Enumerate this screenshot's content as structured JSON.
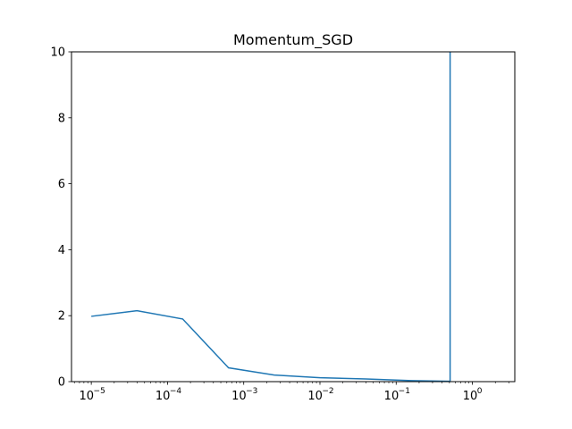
{
  "chart_data": {
    "type": "line",
    "title": "Momentum_SGD",
    "xlabel": "",
    "ylabel": "",
    "xscale": "log",
    "xlim": [
      5.5e-06,
      3.6
    ],
    "ylim": [
      0,
      10
    ],
    "grid": false,
    "x_ticks": [
      {
        "base": "10",
        "exp": "−5",
        "value": 1e-05
      },
      {
        "base": "10",
        "exp": "−4",
        "value": 0.0001
      },
      {
        "base": "10",
        "exp": "−3",
        "value": 0.001
      },
      {
        "base": "10",
        "exp": "−2",
        "value": 0.01
      },
      {
        "base": "10",
        "exp": "−1",
        "value": 0.1
      },
      {
        "base": "10",
        "exp": "0",
        "value": 1
      }
    ],
    "y_ticks": [
      "0",
      "2",
      "4",
      "6",
      "8",
      "10"
    ],
    "series": [
      {
        "color": "#1f77b4",
        "x": [
          1e-05,
          3.98e-05,
          0.000158,
          0.000631,
          0.00251,
          0.01,
          0.0398,
          0.158,
          0.51,
          0.51
        ],
        "y": [
          1.98,
          2.15,
          1.9,
          0.42,
          0.2,
          0.12,
          0.08,
          0.03,
          0.01,
          10
        ]
      }
    ]
  }
}
